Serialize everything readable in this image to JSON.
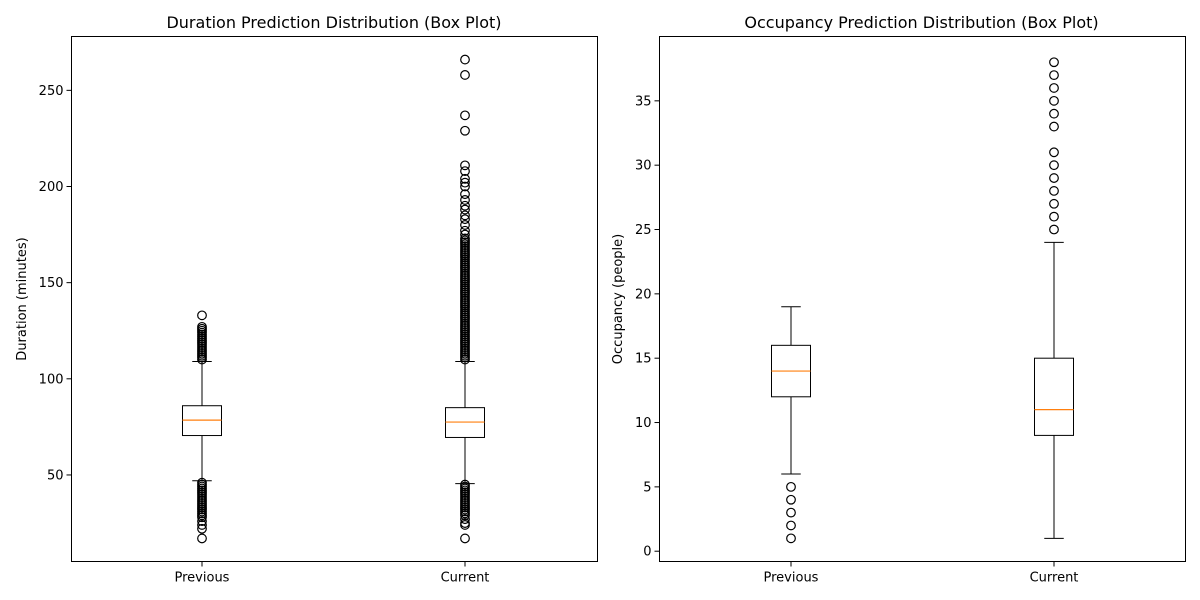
{
  "chart_data": [
    {
      "type": "box",
      "title": "Duration Prediction Distribution (Box Plot)",
      "xlabel": "",
      "ylabel": "Duration (minutes)",
      "categories": [
        "Previous",
        "Current"
      ],
      "ylim": [
        5,
        278
      ],
      "yticks": [
        50,
        100,
        150,
        200,
        250
      ],
      "grid": false,
      "boxes": [
        {
          "name": "Previous",
          "whisker_low": 47,
          "q1": 70.5,
          "median": 78.5,
          "q3": 86,
          "whisker_high": 109,
          "outliers": [
            110,
            111,
            112,
            113,
            114,
            115,
            116,
            117,
            118,
            119,
            120,
            121,
            122,
            123,
            124,
            125,
            126,
            127,
            133,
            46,
            45,
            44,
            43,
            42,
            41,
            40,
            39,
            38,
            37,
            36,
            35,
            34,
            33,
            32,
            31,
            30,
            29,
            28,
            26,
            24,
            22,
            17
          ]
        },
        {
          "name": "Current",
          "whisker_low": 45.5,
          "q1": 69.5,
          "median": 77.5,
          "q3": 85,
          "whisker_high": 109,
          "outliers": [
            110,
            111,
            112,
            113,
            114,
            115,
            116,
            117,
            118,
            119,
            120,
            121,
            122,
            123,
            124,
            125,
            126,
            127,
            128,
            129,
            130,
            131,
            132,
            133,
            134,
            135,
            136,
            137,
            138,
            139,
            140,
            141,
            142,
            143,
            144,
            145,
            146,
            147,
            148,
            149,
            150,
            151,
            152,
            153,
            154,
            155,
            156,
            157,
            158,
            159,
            160,
            161,
            162,
            163,
            164,
            165,
            166,
            167,
            168,
            169,
            170,
            171,
            172,
            173,
            175,
            177,
            180,
            183,
            185,
            188,
            190,
            193,
            196,
            200,
            202,
            204,
            208,
            211,
            229,
            237,
            258,
            266,
            45,
            44,
            43,
            42,
            41,
            40,
            39,
            38,
            37,
            36,
            35,
            34,
            33,
            32,
            31,
            30,
            29,
            27,
            25,
            24,
            17
          ]
        }
      ]
    },
    {
      "type": "box",
      "title": "Occupancy Prediction Distribution (Box Plot)",
      "xlabel": "",
      "ylabel": "Occupancy (people)",
      "categories": [
        "Previous",
        "Current"
      ],
      "ylim": [
        -0.8,
        40
      ],
      "yticks": [
        0,
        5,
        10,
        15,
        20,
        25,
        30,
        35
      ],
      "grid": false,
      "boxes": [
        {
          "name": "Previous",
          "whisker_low": 6,
          "q1": 12,
          "median": 14,
          "q3": 16,
          "whisker_high": 19,
          "outliers": [
            5,
            4,
            3,
            2,
            1
          ]
        },
        {
          "name": "Current",
          "whisker_low": 1,
          "q1": 9,
          "median": 11,
          "q3": 15,
          "whisker_high": 24,
          "outliers": [
            25,
            26,
            27,
            28,
            29,
            30,
            31,
            33,
            34,
            35,
            36,
            37,
            38
          ]
        }
      ]
    }
  ],
  "colors": {
    "box_edge": "#000000",
    "median": "#ff7f0e",
    "background": "#ffffff"
  }
}
